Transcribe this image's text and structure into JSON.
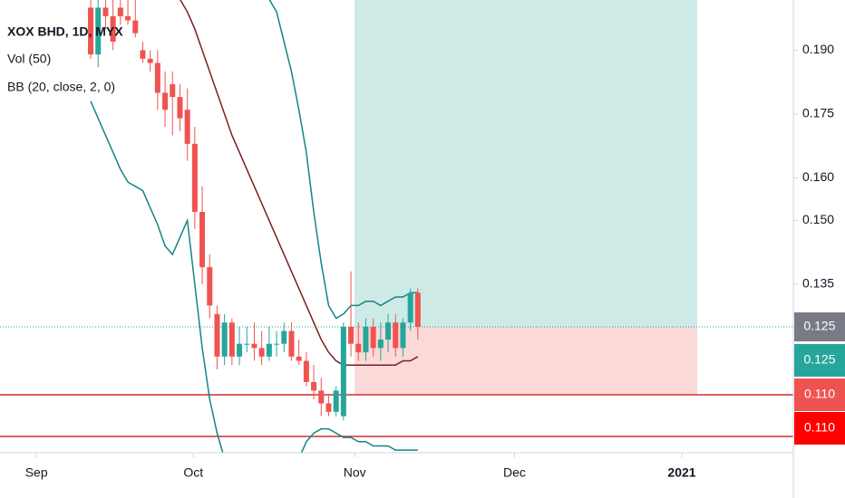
{
  "chart_data": {
    "type": "candlestick",
    "title": "XOX BHD, 1D, MYX",
    "indicators": [
      "Vol (50)",
      "BB (20, close, 2, 0)"
    ],
    "up_color": "#26a69a",
    "down_color": "#ef5350",
    "open": [
      0.2,
      0.189,
      0.2,
      0.198,
      0.2,
      0.198,
      0.197,
      0.19,
      0.188,
      0.187,
      0.18,
      0.182,
      0.179,
      0.176,
      0.168,
      0.152,
      0.139,
      0.128,
      0.118,
      0.126,
      0.118,
      0.121,
      0.121,
      0.12,
      0.118,
      0.121,
      0.121,
      0.124,
      0.118,
      0.117,
      0.112,
      0.11,
      0.107,
      0.105,
      0.104,
      0.125,
      0.121,
      0.119,
      0.125,
      0.12,
      0.122,
      0.126,
      0.12,
      0.126,
      0.133
    ],
    "high": [
      0.202,
      0.202,
      0.202,
      0.202,
      0.202,
      0.202,
      0.202,
      0.192,
      0.19,
      0.19,
      0.185,
      0.185,
      0.182,
      0.181,
      0.172,
      0.158,
      0.142,
      0.13,
      0.128,
      0.127,
      0.125,
      0.125,
      0.126,
      0.124,
      0.125,
      0.124,
      0.126,
      0.126,
      0.122,
      0.119,
      0.116,
      0.113,
      0.109,
      0.111,
      0.126,
      0.138,
      0.126,
      0.127,
      0.127,
      0.126,
      0.128,
      0.128,
      0.127,
      0.134,
      0.134
    ],
    "low": [
      0.188,
      0.186,
      0.195,
      0.19,
      0.196,
      0.196,
      0.193,
      0.187,
      0.185,
      0.176,
      0.172,
      0.17,
      0.171,
      0.164,
      0.148,
      0.135,
      0.127,
      0.115,
      0.116,
      0.116,
      0.116,
      0.119,
      0.117,
      0.116,
      0.117,
      0.118,
      0.119,
      0.117,
      0.116,
      0.111,
      0.108,
      0.104,
      0.104,
      0.104,
      0.103,
      0.118,
      0.117,
      0.117,
      0.118,
      0.117,
      0.119,
      0.118,
      0.118,
      0.124,
      0.122
    ],
    "close": [
      0.189,
      0.2,
      0.198,
      0.192,
      0.198,
      0.197,
      0.194,
      0.188,
      0.187,
      0.18,
      0.176,
      0.179,
      0.174,
      0.168,
      0.152,
      0.139,
      0.13,
      0.118,
      0.126,
      0.118,
      0.121,
      0.121,
      0.12,
      0.118,
      0.121,
      0.121,
      0.124,
      0.118,
      0.117,
      0.112,
      0.11,
      0.107,
      0.105,
      0.11,
      0.125,
      0.121,
      0.119,
      0.125,
      0.12,
      0.122,
      0.126,
      0.12,
      0.126,
      0.133,
      0.125
    ],
    "overlays": [
      {
        "color": "#138484",
        "values": [
          0.23,
          0.23,
          0.229,
          0.228,
          0.227,
          0.226,
          0.225,
          0.224,
          0.223,
          0.222,
          0.221,
          0.22,
          0.219,
          0.218,
          0.216,
          0.214,
          0.212,
          0.21,
          0.209,
          0.208,
          0.207,
          0.206,
          0.205,
          0.204,
          0.202,
          0.199,
          0.192,
          0.185,
          0.176,
          0.166,
          0.152,
          0.14,
          0.13,
          0.127,
          0.128,
          0.13,
          0.13,
          0.131,
          0.131,
          0.13,
          0.131,
          0.132,
          0.132,
          0.133,
          0.133
        ]
      },
      {
        "color": "#7b1f1f",
        "values": [
          0.215,
          0.214,
          0.213,
          0.212,
          0.211,
          0.209,
          0.208,
          0.207,
          0.206,
          0.205,
          0.204,
          0.203,
          0.202,
          0.199,
          0.195,
          0.19,
          0.185,
          0.18,
          0.175,
          0.17,
          0.166,
          0.162,
          0.158,
          0.154,
          0.15,
          0.146,
          0.142,
          0.138,
          0.134,
          0.13,
          0.126,
          0.122,
          0.119,
          0.117,
          0.116,
          0.116,
          0.116,
          0.116,
          0.116,
          0.116,
          0.116,
          0.116,
          0.117,
          0.117,
          0.118
        ]
      },
      {
        "color": "#138484",
        "values": [
          0.178,
          0.174,
          0.17,
          0.166,
          0.162,
          0.159,
          0.158,
          0.157,
          0.153,
          0.149,
          0.144,
          0.142,
          0.146,
          0.15,
          0.135,
          0.12,
          0.108,
          0.1,
          0.094,
          0.09,
          0.088,
          0.086,
          0.085,
          0.085,
          0.085,
          0.086,
          0.088,
          0.09,
          0.094,
          0.098,
          0.1,
          0.101,
          0.101,
          0.1,
          0.099,
          0.099,
          0.098,
          0.098,
          0.097,
          0.097,
          0.097,
          0.096,
          0.096,
          0.096,
          0.096
        ]
      }
    ],
    "xlim": [
      -12.2,
      94.5
    ],
    "xticks": [
      {
        "value": -7.3,
        "label": "Sep"
      },
      {
        "value": 13.8,
        "label": "Oct"
      },
      {
        "value": 35.5,
        "label": "Nov"
      },
      {
        "value": 57,
        "label": "Dec"
      },
      {
        "value": 79.5,
        "label": "2021"
      }
    ],
    "ylim": [
      0.0954,
      0.2018
    ],
    "yticks": [
      {
        "value": 0.19,
        "label": "0.190"
      },
      {
        "value": 0.175,
        "label": "0.175"
      },
      {
        "value": 0.16,
        "label": "0.160"
      },
      {
        "value": 0.15,
        "label": "0.150"
      },
      {
        "value": 0.135,
        "label": "0.135"
      }
    ],
    "price_labels": [
      "0.125",
      "0.125",
      "0.110",
      "0.110"
    ]
  }
}
